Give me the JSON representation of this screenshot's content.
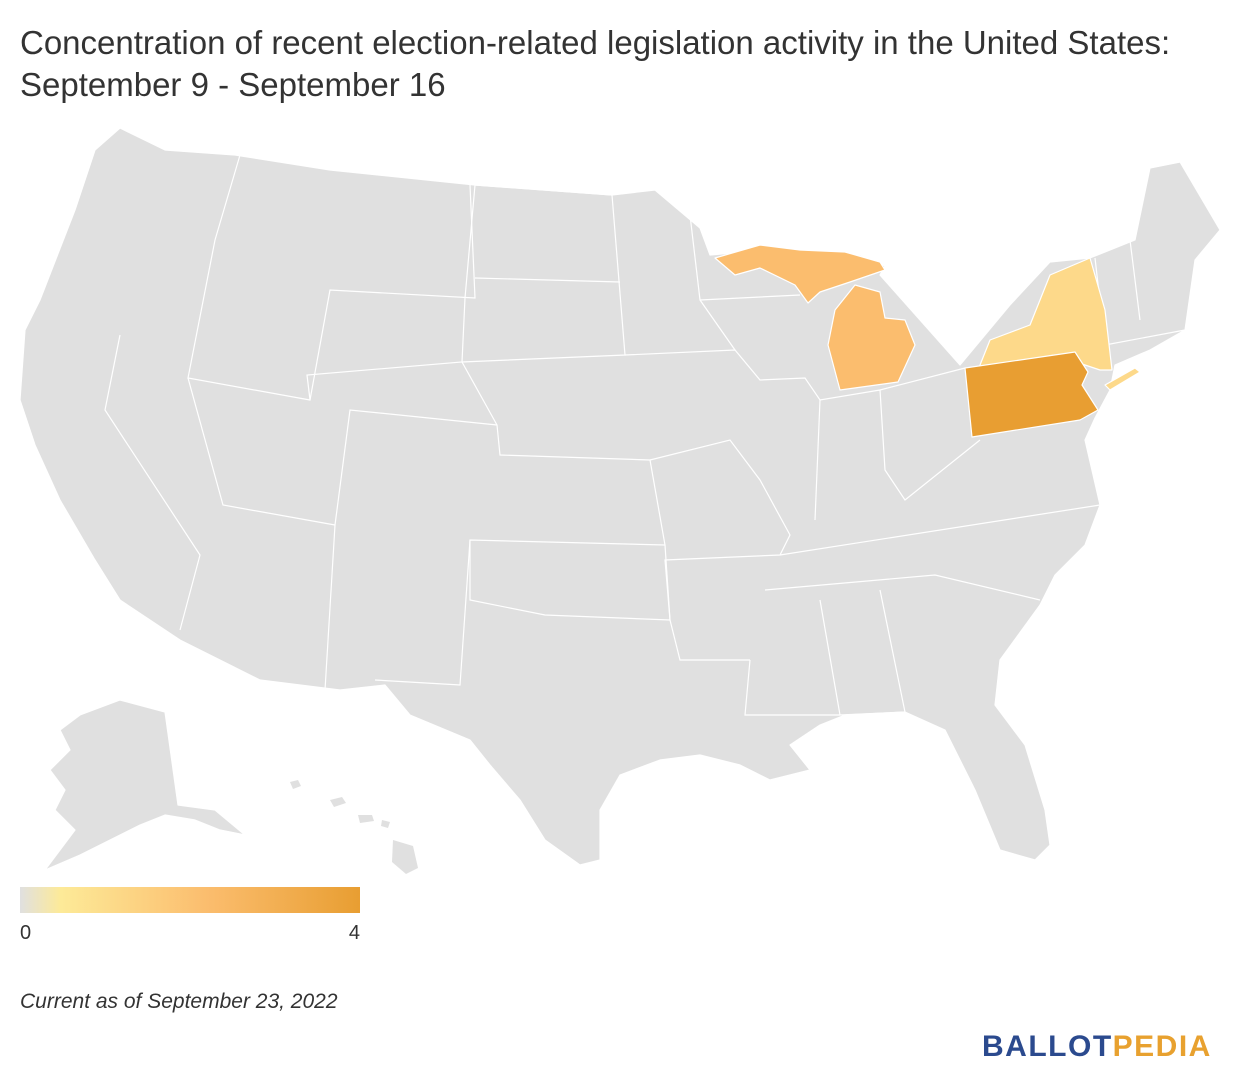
{
  "title": "Concentration of recent election-related legislation activity in the United States: September 9 - September 16",
  "map": {
    "colors": {
      "none": "#e0e0e0",
      "low": "#fdd98a",
      "mid": "#fbbd6e",
      "high": "#e89e32"
    },
    "highlighted_states": [
      {
        "state": "Pennsylvania",
        "level": "high"
      },
      {
        "state": "Michigan",
        "level": "mid"
      },
      {
        "state": "New York",
        "level": "low"
      }
    ]
  },
  "legend": {
    "min": "0",
    "max": "4",
    "gradient": [
      "#e0e0e0",
      "#fdea98",
      "#fbbd6e",
      "#e89e32"
    ]
  },
  "footnote": "Current as of September 23, 2022",
  "logo": {
    "part1": "BALLOT",
    "part2": "PEDIA"
  }
}
